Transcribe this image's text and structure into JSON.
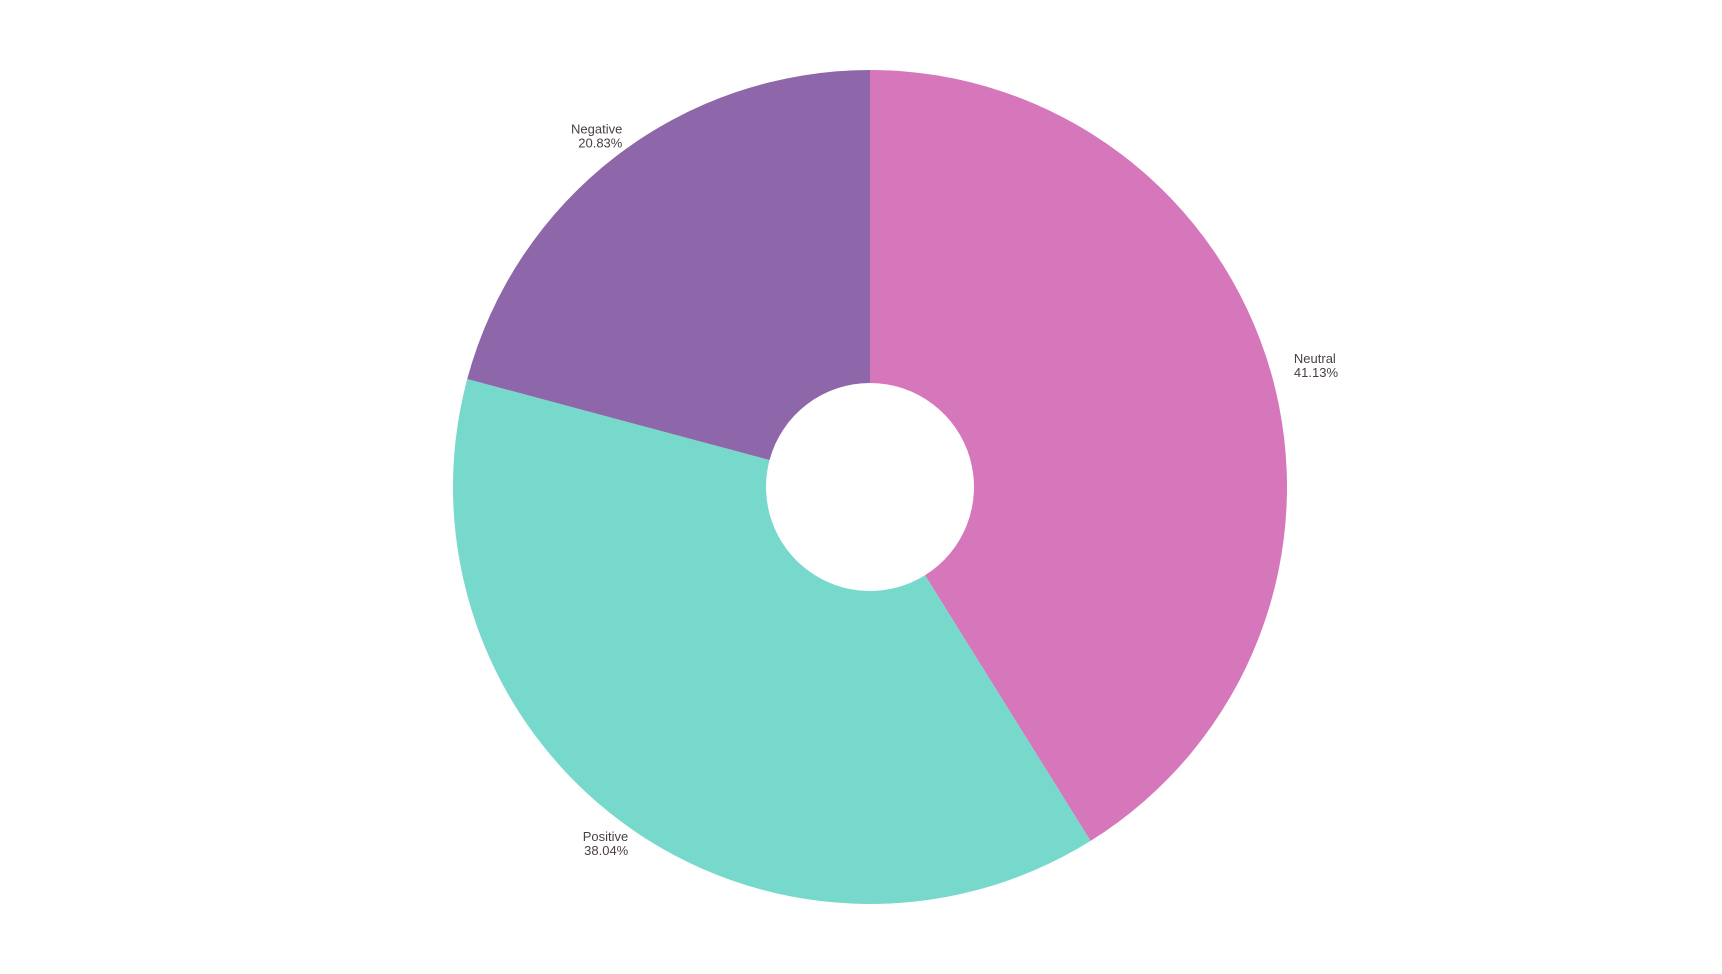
{
  "chart_data": {
    "type": "pie",
    "donut": true,
    "start_angle_deg": 0,
    "direction": "clockwise",
    "slices": [
      {
        "label": "Neutral",
        "value": 41.13,
        "display": "41.13%",
        "color": "#d577ba"
      },
      {
        "label": "Positive",
        "value": 38.04,
        "display": "38.04%",
        "color": "#77d8cc"
      },
      {
        "label": "Negative",
        "value": 20.83,
        "display": "20.83%",
        "color": "#8e66aa"
      }
    ],
    "title": "",
    "legend": "none"
  }
}
